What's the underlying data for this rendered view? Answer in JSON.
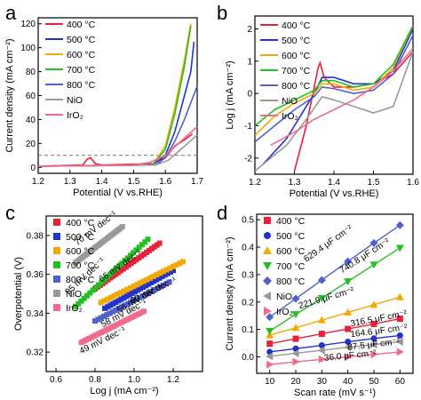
{
  "figure": {
    "panel_letters": [
      "a",
      "b",
      "c",
      "d"
    ]
  },
  "series_labels": [
    "400 °C",
    "500 °C",
    "600 °C",
    "700 °C",
    "800 °C",
    "NiO",
    "IrO₂"
  ],
  "colors": {
    "s400": "#e8203a",
    "s500": "#2233cc",
    "s600": "#f2a900",
    "s700": "#22c022",
    "s800": "#5060cc",
    "nio": "#999999",
    "iro2": "#f06a8a",
    "dashed": "#777777"
  },
  "chart_data": [
    {
      "panel": "a",
      "type": "line",
      "xlabel": "Potential (V vs.RHE)",
      "ylabel": "Current density (mA cm⁻²)",
      "xlim": [
        1.2,
        1.7
      ],
      "ylim": [
        -5,
        125
      ],
      "xticks": [
        "1.2",
        "1.3",
        "1.4",
        "1.5",
        "1.6",
        "1.7"
      ],
      "yticks": [
        "0",
        "20",
        "40",
        "60",
        "80",
        "100",
        "120"
      ],
      "legend": "top-left",
      "reference_line_y": 10,
      "series": [
        {
          "name": "400 °C",
          "x": [
            1.2,
            1.34,
            1.355,
            1.365,
            1.38,
            1.4,
            1.56,
            1.6,
            1.63,
            1.66,
            1.685
          ],
          "y": [
            1,
            2,
            7,
            8,
            3,
            2,
            3,
            8,
            18,
            23,
            28
          ]
        },
        {
          "name": "500 °C",
          "x": [
            1.2,
            1.56,
            1.6,
            1.63,
            1.66,
            1.68,
            1.69
          ],
          "y": [
            1,
            2,
            10,
            30,
            60,
            80,
            105
          ]
        },
        {
          "name": "600 °C",
          "x": [
            1.2,
            1.56,
            1.6,
            1.63,
            1.66,
            1.68
          ],
          "y": [
            1,
            2,
            18,
            50,
            90,
            120
          ]
        },
        {
          "name": "700 °C",
          "x": [
            1.2,
            1.56,
            1.6,
            1.63,
            1.66,
            1.68
          ],
          "y": [
            1,
            2,
            15,
            45,
            85,
            118
          ]
        },
        {
          "name": "800 °C",
          "x": [
            1.2,
            1.57,
            1.6,
            1.63,
            1.66,
            1.7
          ],
          "y": [
            1,
            2,
            8,
            22,
            40,
            68
          ]
        },
        {
          "name": "NiO",
          "x": [
            1.2,
            1.57,
            1.61,
            1.64,
            1.67,
            1.7
          ],
          "y": [
            1,
            2,
            6,
            13,
            20,
            27
          ]
        },
        {
          "name": "IrO₂",
          "x": [
            1.2,
            1.5,
            1.55,
            1.6,
            1.65,
            1.7
          ],
          "y": [
            1,
            2,
            4,
            10,
            22,
            34
          ]
        }
      ]
    },
    {
      "panel": "b",
      "type": "line",
      "xlabel": "Potential (V vs.RHE)",
      "ylabel": "Log j (mA cm⁻²)",
      "xlim": [
        1.2,
        1.6
      ],
      "ylim": [
        -2.5,
        2.4
      ],
      "xticks": [
        "1.2",
        "1.3",
        "1.4",
        "1.5",
        "1.6"
      ],
      "yticks": [
        "-2",
        "-1",
        "0",
        "1",
        "2"
      ],
      "legend": "top-right",
      "series": [
        {
          "name": "400 °C",
          "x": [
            1.3,
            1.33,
            1.35,
            1.36,
            1.365,
            1.375,
            1.4,
            1.45,
            1.5,
            1.55,
            1.6
          ],
          "y": [
            -2.4,
            -1.0,
            0.2,
            0.8,
            0.95,
            0.5,
            0.2,
            0.2,
            0.3,
            0.6,
            1.3
          ]
        },
        {
          "name": "500 °C",
          "x": [
            1.22,
            1.28,
            1.32,
            1.35,
            1.37,
            1.4,
            1.45,
            1.5,
            1.55,
            1.6
          ],
          "y": [
            -2.2,
            -1.4,
            -0.6,
            0.0,
            0.5,
            0.5,
            0.3,
            0.3,
            0.7,
            2.0
          ]
        },
        {
          "name": "600 °C",
          "x": [
            1.2,
            1.25,
            1.3,
            1.35,
            1.37,
            1.4,
            1.45,
            1.5,
            1.55,
            1.6
          ],
          "y": [
            -1.3,
            -0.7,
            -0.3,
            0.0,
            0.3,
            0.3,
            0.1,
            0.2,
            0.8,
            2.1
          ]
        },
        {
          "name": "700 °C",
          "x": [
            1.2,
            1.25,
            1.3,
            1.35,
            1.37,
            1.4,
            1.45,
            1.5,
            1.55,
            1.6
          ],
          "y": [
            -1.0,
            -0.5,
            -0.2,
            0.1,
            0.4,
            0.4,
            0.2,
            0.3,
            0.9,
            2.1
          ]
        },
        {
          "name": "800 °C",
          "x": [
            1.2,
            1.25,
            1.3,
            1.35,
            1.37,
            1.4,
            1.45,
            1.5,
            1.55,
            1.6
          ],
          "y": [
            -1.5,
            -1.0,
            -0.5,
            -0.1,
            0.2,
            0.15,
            0.0,
            0.1,
            0.6,
            1.8
          ]
        },
        {
          "name": "NiO",
          "x": [
            1.2,
            1.28,
            1.33,
            1.37,
            1.4,
            1.45,
            1.5,
            1.55,
            1.6
          ],
          "y": [
            -2.4,
            -1.6,
            -0.8,
            -0.1,
            -0.2,
            -0.4,
            -0.6,
            -0.4,
            1.3
          ]
        },
        {
          "name": "IrO₂",
          "x": [
            1.24,
            1.3,
            1.35,
            1.4,
            1.45,
            1.5,
            1.55,
            1.6
          ],
          "y": [
            -1.6,
            -1.2,
            -0.8,
            -0.5,
            -0.2,
            0.2,
            0.7,
            1.4
          ]
        }
      ]
    },
    {
      "panel": "c",
      "type": "scatter",
      "xlabel": "Log j (mA cm⁻²)",
      "ylabel": "Overpotential (V)",
      "xlim": [
        0.55,
        1.35
      ],
      "ylim": [
        0.31,
        0.39
      ],
      "xticks": [
        "0.6",
        "0.8",
        "1.0",
        "1.2"
      ],
      "yticks": [
        "0.32",
        "0.34",
        "0.36",
        "0.38"
      ],
      "legend": "top-left",
      "series": [
        {
          "name": "400 °C",
          "x": [
            0.8,
            1.13
          ],
          "y": [
            0.3525,
            0.376
          ],
          "tafel": "66 mV dec⁻¹"
        },
        {
          "name": "500 °C",
          "x": [
            0.85,
            1.2
          ],
          "y": [
            0.3425,
            0.362
          ],
          "tafel": "56 mV dec⁻¹"
        },
        {
          "name": "600 °C",
          "x": [
            0.83,
            1.25
          ],
          "y": [
            0.3455,
            0.3665
          ],
          "tafel": "60 mV dec⁻¹"
        },
        {
          "name": "700 °C",
          "x": [
            0.7,
            1.07
          ],
          "y": [
            0.3435,
            0.378
          ],
          "tafel": "95 mV dec⁻¹"
        },
        {
          "name": "800 °C",
          "x": [
            0.8,
            1.18
          ],
          "y": [
            0.336,
            0.356
          ],
          "tafel": "58 mV dec⁻¹"
        },
        {
          "name": "NiO",
          "x": [
            0.7,
            0.94
          ],
          "y": [
            0.366,
            0.3845
          ],
          "tafel": "70 mV dec⁻¹"
        },
        {
          "name": "IrO₂",
          "x": [
            0.73,
            1.05
          ],
          "y": [
            0.325,
            0.341
          ],
          "tafel": "49 mV dec⁻¹"
        }
      ]
    },
    {
      "panel": "d",
      "type": "scatter",
      "xlabel": "Scan rate (mV s⁻¹)",
      "ylabel": "Current density (mA cm⁻²)",
      "xlim": [
        5,
        65
      ],
      "ylim": [
        -0.06,
        0.52
      ],
      "xticks": [
        "10",
        "20",
        "30",
        "40",
        "50",
        "60"
      ],
      "yticks": [
        "0.0",
        "0.1",
        "0.2",
        "0.3",
        "0.4",
        "0.5"
      ],
      "legend": "top-left",
      "series": [
        {
          "name": "400 °C",
          "marker": "square",
          "x": [
            10,
            20,
            30,
            40,
            50,
            60
          ],
          "y": [
            0.048,
            0.066,
            0.084,
            0.102,
            0.12,
            0.139
          ],
          "capacitance": "316.5 μF cm⁻²"
        },
        {
          "name": "500 °C",
          "marker": "circle",
          "x": [
            10,
            20,
            30,
            40,
            50,
            60
          ],
          "y": [
            0.018,
            0.03,
            0.042,
            0.055,
            0.067,
            0.078
          ],
          "capacitance": "164.6 μF cm⁻²"
        },
        {
          "name": "600 °C",
          "marker": "triangle-up",
          "x": [
            10,
            20,
            30,
            40,
            50,
            60
          ],
          "y": [
            0.079,
            0.106,
            0.134,
            0.162,
            0.19,
            0.218
          ],
          "capacitance": "221.9 μF cm⁻²"
        },
        {
          "name": "700 °C",
          "marker": "triangle-down",
          "x": [
            10,
            20,
            30,
            40,
            50,
            60
          ],
          "y": [
            0.094,
            0.155,
            0.214,
            0.275,
            0.336,
            0.397
          ],
          "capacitance": "740.8 μF cm⁻²"
        },
        {
          "name": "800 °C",
          "marker": "diamond",
          "x": [
            10,
            20,
            30,
            40,
            50,
            60
          ],
          "y": [
            0.145,
            0.212,
            0.28,
            0.348,
            0.415,
            0.48
          ],
          "capacitance": "629.4 μF cm⁻²"
        },
        {
          "name": "NiO",
          "marker": "triangle-left",
          "x": [
            10,
            20,
            30,
            40,
            50,
            60
          ],
          "y": [
            0.002,
            0.013,
            0.024,
            0.035,
            0.045,
            0.055
          ],
          "capacitance": "87.5 μF cm⁻²"
        },
        {
          "name": "IrO₂",
          "marker": "triangle-right",
          "x": [
            10,
            20,
            30,
            40,
            50,
            60
          ],
          "y": [
            -0.028,
            -0.018,
            -0.009,
            0.0,
            0.009,
            0.018
          ],
          "capacitance": "36.0 μF cm⁻²"
        }
      ]
    }
  ]
}
